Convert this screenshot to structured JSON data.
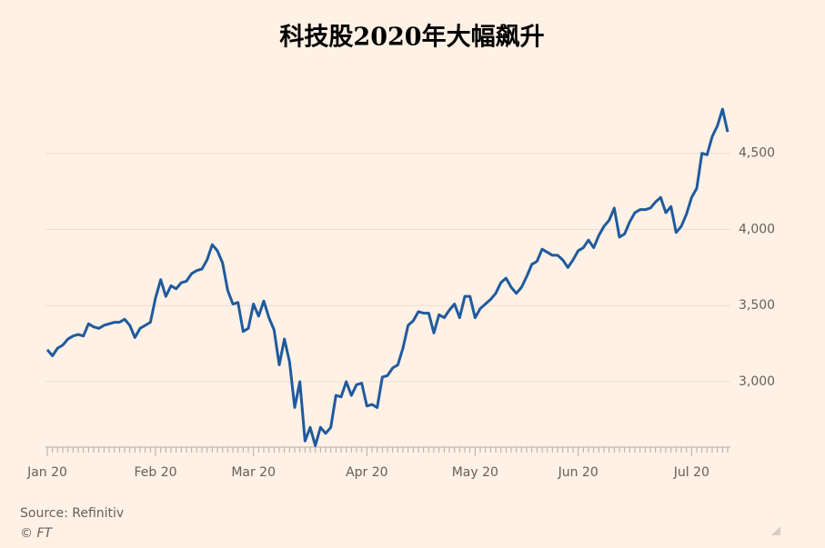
{
  "chart_data": {
    "type": "line",
    "title": "科技股2020年大幅飙升",
    "source": "Source: Refinitiv",
    "credit": "© FT",
    "categories": [
      "Jan 20",
      null,
      null,
      null,
      null,
      null,
      null,
      null,
      null,
      null,
      null,
      null,
      null,
      null,
      null,
      null,
      null,
      null,
      null,
      null,
      null,
      "Feb 20",
      null,
      null,
      null,
      null,
      null,
      null,
      null,
      null,
      null,
      null,
      null,
      null,
      null,
      null,
      null,
      null,
      null,
      null,
      "Mar 20",
      null,
      null,
      null,
      null,
      null,
      null,
      null,
      null,
      null,
      null,
      null,
      null,
      null,
      null,
      null,
      null,
      null,
      null,
      null,
      null,
      null,
      "Apr 20",
      null,
      null,
      null,
      null,
      null,
      null,
      null,
      null,
      null,
      null,
      null,
      null,
      null,
      null,
      null,
      null,
      null,
      null,
      null,
      null,
      "May 20",
      null,
      null,
      null,
      null,
      null,
      null,
      null,
      null,
      null,
      null,
      null,
      null,
      null,
      null,
      null,
      null,
      null,
      null,
      null,
      "Jun 20",
      null,
      null,
      null,
      null,
      null,
      null,
      null,
      null,
      null,
      null,
      null,
      null,
      null,
      null,
      null,
      null,
      null,
      null,
      null,
      null,
      null,
      "Jul 20",
      null,
      null,
      null,
      null,
      null,
      null,
      null
    ],
    "series": [
      {
        "color": "#1f5a9e",
        "values": [
          3210,
          3170,
          3220,
          3240,
          3280,
          3300,
          3310,
          3300,
          3380,
          3360,
          3350,
          3370,
          3380,
          3390,
          3390,
          3410,
          3370,
          3290,
          3350,
          3370,
          3390,
          3550,
          3670,
          3560,
          3630,
          3610,
          3650,
          3660,
          3710,
          3730,
          3740,
          3800,
          3900,
          3860,
          3780,
          3600,
          3510,
          3520,
          3330,
          3350,
          3510,
          3430,
          3530,
          3420,
          3340,
          3110,
          3280,
          3130,
          2830,
          3000,
          2610,
          2700,
          2580,
          2700,
          2660,
          2700,
          2910,
          2900,
          3000,
          2910,
          2980,
          2990,
          2840,
          2850,
          2830,
          3030,
          3040,
          3090,
          3110,
          3220,
          3370,
          3400,
          3460,
          3450,
          3450,
          3320,
          3440,
          3420,
          3470,
          3510,
          3420,
          3560,
          3560,
          3420,
          3480,
          3510,
          3540,
          3580,
          3650,
          3680,
          3620,
          3580,
          3620,
          3690,
          3770,
          3790,
          3870,
          3850,
          3830,
          3830,
          3800,
          3750,
          3800,
          3860,
          3880,
          3930,
          3880,
          3960,
          4020,
          4060,
          4140,
          3950,
          3970,
          4050,
          4110,
          4130,
          4130,
          4140,
          4180,
          4210,
          4110,
          4150,
          3980,
          4020,
          4100,
          4210,
          4270,
          4500,
          4490,
          4610,
          4680,
          4790,
          4640
        ]
      }
    ],
    "ylim": [
      2570,
      4910
    ],
    "yticks": [
      {
        "value": 3000,
        "label": "3,000"
      },
      {
        "value": 3500,
        "label": "3,500"
      },
      {
        "value": 4000,
        "label": "4,000"
      },
      {
        "value": 4500,
        "label": "4,500"
      }
    ],
    "grid": true
  }
}
